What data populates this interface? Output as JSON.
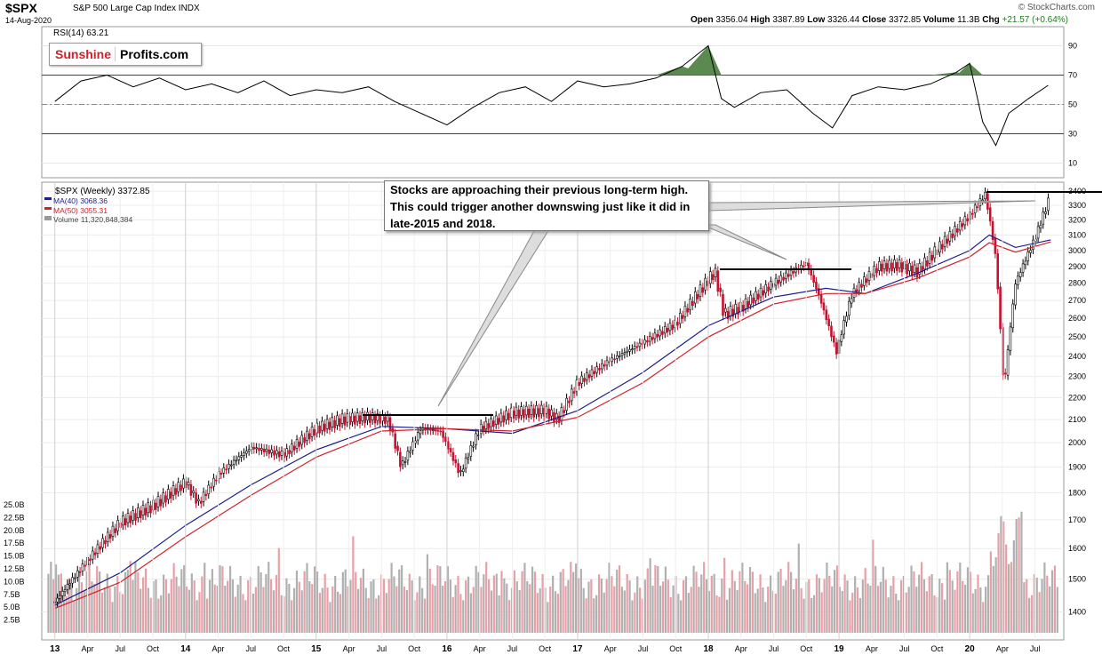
{
  "header": {
    "symbol": "$SPX",
    "name": "S&P 500 Large Cap Index",
    "exchange": "INDX",
    "date": "14-Aug-2020",
    "credit": "© StockCharts.com",
    "ohlc": {
      "open_label": "Open",
      "open": "3356.04",
      "high_label": "High",
      "high": "3387.89",
      "low_label": "Low",
      "low": "3326.44",
      "close_label": "Close",
      "close": "3372.85",
      "volume_label": "Volume",
      "volume": "11.3B",
      "chg_label": "Chg",
      "chg": "+21.57 (+0.64%)"
    }
  },
  "logo": {
    "part1": "Sunshine",
    "part2": "Profits.com"
  },
  "callout": {
    "text": "Stocks are approaching their previous long-term high. This could trigger another downswing just like it did in late-2015 and 2018."
  },
  "colors": {
    "up": "#000000",
    "down": "#c8102e",
    "ma40": "#1c1c8c",
    "ma50": "#d0202a",
    "rsi_fill": "#5a8a50",
    "vol_gray": "#b0b0b0",
    "vol_red": "#e8a0a8"
  },
  "chart_data": [
    {
      "type": "line",
      "title": "RSI(14) 63.21",
      "ylim": [
        0,
        100
      ],
      "yticks": [
        10,
        30,
        50,
        70,
        90
      ],
      "reference_lines": [
        30,
        50,
        70
      ],
      "series": [
        {
          "name": "RSI(14)",
          "x": [
            2013.0,
            2013.2,
            2013.4,
            2013.6,
            2013.8,
            2014.0,
            2014.2,
            2014.4,
            2014.6,
            2014.8,
            2015.0,
            2015.2,
            2015.4,
            2015.6,
            2015.8,
            2016.0,
            2016.2,
            2016.4,
            2016.6,
            2016.8,
            2017.0,
            2017.2,
            2017.4,
            2017.6,
            2017.8,
            2018.0,
            2018.1,
            2018.2,
            2018.4,
            2018.6,
            2018.8,
            2018.95,
            2019.1,
            2019.3,
            2019.5,
            2019.7,
            2019.9,
            2020.0,
            2020.1,
            2020.2,
            2020.3,
            2020.45,
            2020.6
          ],
          "values": [
            52,
            66,
            70,
            62,
            68,
            60,
            64,
            58,
            66,
            56,
            60,
            58,
            62,
            52,
            44,
            36,
            48,
            58,
            62,
            52,
            66,
            62,
            64,
            68,
            76,
            90,
            54,
            48,
            58,
            60,
            44,
            34,
            56,
            62,
            60,
            64,
            72,
            78,
            38,
            22,
            44,
            54,
            63
          ]
        }
      ]
    },
    {
      "type": "line",
      "title": "$SPX (Weekly) 3372.85",
      "legend": [
        "$SPX (Weekly) 3372.85",
        "MA(40) 3068.36",
        "MA(50) 3055.31",
        "Volume 11,320,848,384"
      ],
      "x_ticks": [
        "13",
        "Apr",
        "Jul",
        "Oct",
        "14",
        "Apr",
        "Jul",
        "Oct",
        "15",
        "Apr",
        "Jul",
        "Oct",
        "16",
        "Apr",
        "Jul",
        "Oct",
        "17",
        "Apr",
        "Jul",
        "Oct",
        "18",
        "Apr",
        "Jul",
        "Oct",
        "19",
        "Apr",
        "Jul",
        "Oct",
        "20",
        "Apr",
        "Jul"
      ],
      "yticks": [
        1400,
        1500,
        1600,
        1700,
        1800,
        1900,
        2000,
        2100,
        2200,
        2300,
        2400,
        2500,
        2600,
        2700,
        2800,
        2900,
        3000,
        3100,
        3200,
        3300,
        3400
      ],
      "ylim": [
        1370,
        3420
      ],
      "y_scale": "log",
      "series": [
        {
          "name": "$SPX (Weekly) 3372.85",
          "x": [
            2013.0,
            2013.25,
            2013.5,
            2013.75,
            2014.0,
            2014.1,
            2014.25,
            2014.5,
            2014.75,
            2015.0,
            2015.2,
            2015.4,
            2015.55,
            2015.65,
            2015.8,
            2015.95,
            2016.1,
            2016.25,
            2016.5,
            2016.75,
            2016.85,
            2017.0,
            2017.25,
            2017.5,
            2017.75,
            2018.0,
            2018.05,
            2018.12,
            2018.25,
            2018.5,
            2018.75,
            2018.85,
            2018.98,
            2019.1,
            2019.3,
            2019.45,
            2019.6,
            2019.8,
            2020.0,
            2020.12,
            2020.2,
            2020.26,
            2020.35,
            2020.5,
            2020.62
          ],
          "values": [
            1430,
            1560,
            1690,
            1750,
            1840,
            1760,
            1870,
            1980,
            1950,
            2060,
            2100,
            2110,
            2100,
            1900,
            2060,
            2050,
            1870,
            2060,
            2130,
            2140,
            2100,
            2270,
            2380,
            2470,
            2570,
            2820,
            2870,
            2620,
            2660,
            2800,
            2920,
            2720,
            2420,
            2740,
            2900,
            2910,
            2870,
            3050,
            3230,
            3380,
            2950,
            2230,
            2800,
            3080,
            3373
          ]
        },
        {
          "name": "MA(40) 3068.36",
          "x": [
            2013.0,
            2013.5,
            2014.0,
            2014.5,
            2015.0,
            2015.5,
            2016.0,
            2016.5,
            2017.0,
            2017.5,
            2018.0,
            2018.5,
            2018.9,
            2019.2,
            2019.6,
            2020.0,
            2020.15,
            2020.35,
            2020.62
          ],
          "values": [
            1420,
            1520,
            1680,
            1830,
            1970,
            2070,
            2060,
            2040,
            2140,
            2320,
            2560,
            2720,
            2770,
            2740,
            2860,
            3000,
            3100,
            3020,
            3068
          ]
        },
        {
          "name": "MA(50) 3055.31",
          "x": [
            2013.0,
            2013.5,
            2014.0,
            2014.5,
            2015.0,
            2015.5,
            2016.0,
            2016.5,
            2017.0,
            2017.5,
            2018.0,
            2018.5,
            2018.9,
            2019.2,
            2019.6,
            2020.0,
            2020.15,
            2020.35,
            2020.62
          ],
          "values": [
            1410,
            1490,
            1640,
            1790,
            1940,
            2050,
            2060,
            2050,
            2110,
            2270,
            2500,
            2680,
            2740,
            2740,
            2830,
            2960,
            3050,
            2990,
            3055
          ]
        }
      ]
    },
    {
      "type": "bar",
      "title": "Volume",
      "yticks": [
        "2.5B",
        "5.0B",
        "7.5B",
        "10.0B",
        "12.5B",
        "15.0B",
        "17.5B",
        "20.0B",
        "22.5B",
        "25.0B"
      ],
      "ylim": [
        0,
        25
      ],
      "annotation": "Volume 11,320,848,384"
    }
  ]
}
